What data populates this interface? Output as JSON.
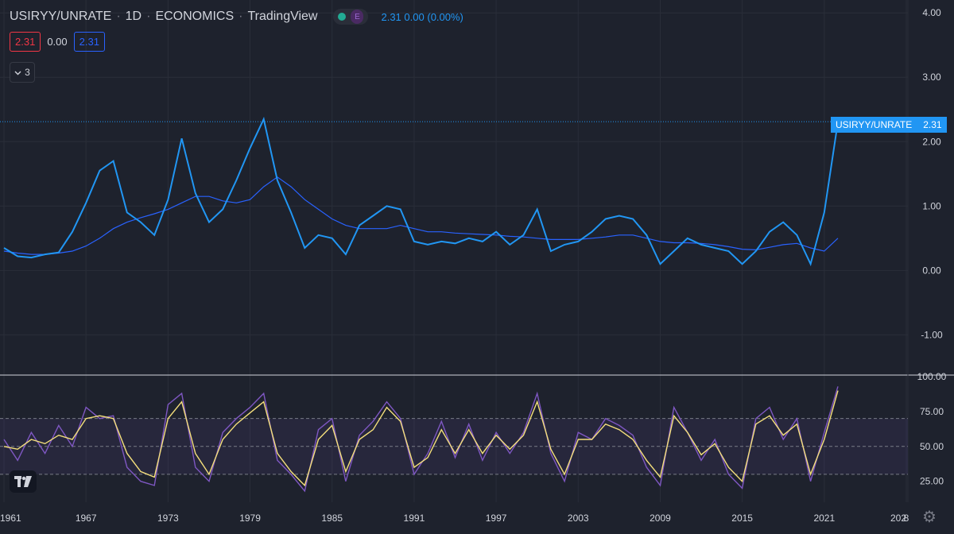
{
  "header": {
    "symbol": "USIRYY/UNRATE",
    "interval": "1D",
    "exchange": "ECONOMICS",
    "source": "TradingView",
    "status_badge": "E",
    "last": "2.31",
    "change": "0.00",
    "change_pct": "(0.00%)"
  },
  "legend": {
    "open_value": "2.31",
    "mid_value": "0.00",
    "close_value": "2.31",
    "indicators_count": "3"
  },
  "price_label": {
    "symbol": "USIRYY/UNRATE",
    "value": "2.31"
  },
  "colors": {
    "background": "#1e222d",
    "main_line": "#2196f3",
    "ma_line": "#2962ff",
    "rsi_line": "#7e57c2",
    "rsi_ma": "#f5e07c",
    "rsi_band": "rgba(126,87,194,0.10)",
    "grid": "#2a2e39",
    "axis_text": "#d1d4dc"
  },
  "icons": {
    "collapse": "chevron-down-icon",
    "logo": "tradingview-logo-icon",
    "settings": "gear-icon"
  },
  "chart_data": [
    {
      "type": "line",
      "title": "USIRYY/UNRATE",
      "x": [
        1961,
        1962,
        1963,
        1964,
        1965,
        1966,
        1967,
        1968,
        1969,
        1970,
        1971,
        1972,
        1973,
        1974,
        1975,
        1976,
        1977,
        1978,
        1979,
        1980,
        1981,
        1982,
        1983,
        1984,
        1985,
        1986,
        1987,
        1988,
        1989,
        1990,
        1991,
        1992,
        1993,
        1994,
        1995,
        1996,
        1997,
        1998,
        1999,
        2000,
        2001,
        2002,
        2003,
        2004,
        2005,
        2006,
        2007,
        2008,
        2009,
        2010,
        2011,
        2012,
        2013,
        2014,
        2015,
        2016,
        2017,
        2018,
        2019,
        2020,
        2021,
        2022
      ],
      "series": [
        {
          "name": "USIRYY/UNRATE",
          "values": [
            0.35,
            0.22,
            0.2,
            0.25,
            0.28,
            0.6,
            1.05,
            1.55,
            1.7,
            0.9,
            0.75,
            0.55,
            1.1,
            2.05,
            1.2,
            0.75,
            0.95,
            1.4,
            1.9,
            2.35,
            1.4,
            0.9,
            0.35,
            0.55,
            0.5,
            0.25,
            0.7,
            0.85,
            1.0,
            0.95,
            0.45,
            0.4,
            0.45,
            0.42,
            0.5,
            0.45,
            0.6,
            0.4,
            0.55,
            0.95,
            0.3,
            0.4,
            0.45,
            0.6,
            0.8,
            0.85,
            0.8,
            0.55,
            0.1,
            0.3,
            0.5,
            0.4,
            0.35,
            0.3,
            0.1,
            0.3,
            0.6,
            0.75,
            0.55,
            0.1,
            0.9,
            2.31
          ]
        },
        {
          "name": "",
          "values": [
            0.3,
            0.27,
            0.25,
            0.25,
            0.27,
            0.3,
            0.38,
            0.5,
            0.65,
            0.75,
            0.82,
            0.88,
            0.95,
            1.05,
            1.15,
            1.15,
            1.08,
            1.05,
            1.1,
            1.3,
            1.45,
            1.3,
            1.1,
            0.95,
            0.8,
            0.7,
            0.65,
            0.65,
            0.65,
            0.7,
            0.65,
            0.6,
            0.6,
            0.58,
            0.57,
            0.56,
            0.55,
            0.53,
            0.52,
            0.5,
            0.48,
            0.48,
            0.48,
            0.5,
            0.52,
            0.55,
            0.55,
            0.5,
            0.45,
            0.43,
            0.43,
            0.42,
            0.4,
            0.37,
            0.33,
            0.32,
            0.36,
            0.4,
            0.42,
            0.35,
            0.3,
            0.5
          ]
        }
      ],
      "ylim": [
        -1.6,
        4.2
      ],
      "y_ticks": [
        "4.00",
        "3.00",
        "2.00",
        "1.00",
        "0.00",
        "-1.00"
      ],
      "x_ticks": [
        "1961",
        "1967",
        "1973",
        "1979",
        "1985",
        "1991",
        "1997",
        "2003",
        "2009",
        "2015",
        "2021",
        "8",
        "202"
      ]
    },
    {
      "type": "line",
      "x": [
        1961,
        1962,
        1963,
        1964,
        1965,
        1966,
        1967,
        1968,
        1969,
        1970,
        1971,
        1972,
        1973,
        1974,
        1975,
        1976,
        1977,
        1978,
        1979,
        1980,
        1981,
        1982,
        1983,
        1984,
        1985,
        1986,
        1987,
        1988,
        1989,
        1990,
        1991,
        1992,
        1993,
        1994,
        1995,
        1996,
        1997,
        1998,
        1999,
        2000,
        2001,
        2002,
        2003,
        2004,
        2005,
        2006,
        2007,
        2008,
        2009,
        2010,
        2011,
        2012,
        2013,
        2014,
        2015,
        2016,
        2017,
        2018,
        2019,
        2020,
        2021,
        2022
      ],
      "series": [
        {
          "name": "",
          "values": [
            55,
            40,
            60,
            45,
            65,
            50,
            78,
            70,
            72,
            35,
            25,
            22,
            80,
            88,
            35,
            25,
            60,
            70,
            78,
            88,
            40,
            30,
            18,
            62,
            70,
            25,
            58,
            68,
            82,
            70,
            30,
            45,
            68,
            42,
            66,
            40,
            60,
            45,
            60,
            88,
            45,
            25,
            60,
            55,
            70,
            65,
            58,
            35,
            22,
            78,
            60,
            40,
            55,
            30,
            20,
            70,
            78,
            55,
            70,
            25,
            60,
            93
          ]
        },
        {
          "name": "",
          "values": [
            50,
            48,
            55,
            52,
            58,
            55,
            70,
            72,
            70,
            45,
            32,
            28,
            70,
            82,
            45,
            30,
            55,
            66,
            74,
            82,
            45,
            32,
            22,
            55,
            65,
            32,
            55,
            62,
            78,
            68,
            35,
            42,
            62,
            45,
            62,
            45,
            58,
            48,
            58,
            82,
            48,
            30,
            55,
            55,
            66,
            62,
            55,
            40,
            28,
            72,
            60,
            44,
            52,
            35,
            25,
            66,
            72,
            58,
            66,
            30,
            55,
            90
          ]
        }
      ],
      "ylim": [
        10,
        100
      ],
      "y_ticks": [
        "100.00",
        "75.00",
        "50.00",
        "25.00"
      ]
    }
  ]
}
